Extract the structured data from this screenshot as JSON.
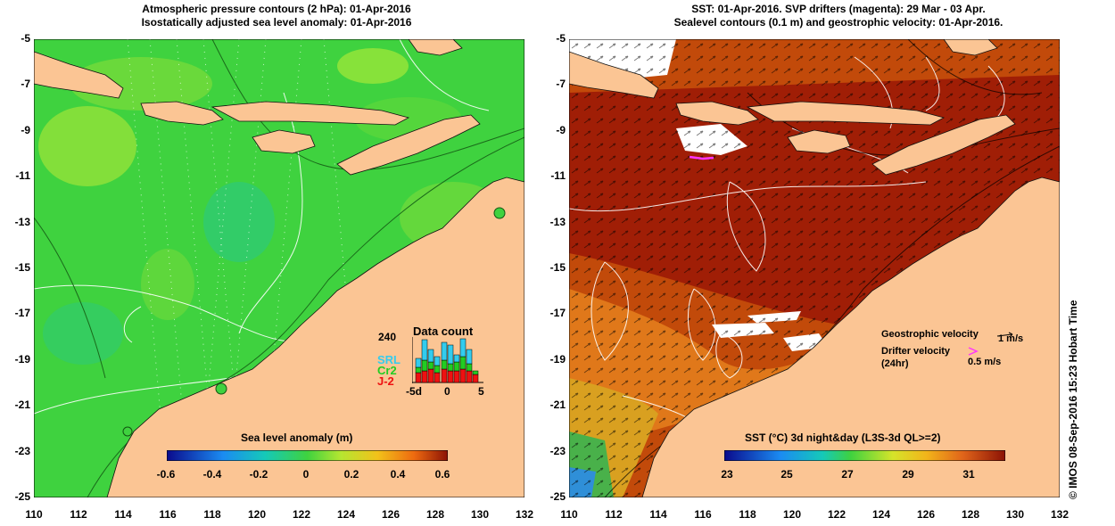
{
  "left_panel": {
    "title_line1": "Atmospheric pressure contours (2 hPa): 01-Apr-2016",
    "title_line2": "Isostatically adjusted sea level anomaly: 01-Apr-2016",
    "colorbar": {
      "label": "Sea level anomaly (m)",
      "ticks": [
        "-0.6",
        "-0.4",
        "-0.2",
        "0",
        "0.2",
        "0.4",
        "0.6"
      ]
    },
    "data_count": {
      "title": "Data count",
      "ymax_label": "240",
      "legend": [
        {
          "name": "SRL",
          "color": "#33ccee"
        },
        {
          "name": "Cr2",
          "color": "#22cc22"
        },
        {
          "name": "J-2",
          "color": "#ee1111"
        }
      ],
      "x_labels": [
        "-5d",
        "0",
        "5"
      ]
    }
  },
  "right_panel": {
    "title_line1": "SST: 01-Apr-2016. SVP drifters (magenta): 29 Mar - 03 Apr.",
    "title_line2": "Sealevel contours (0.1 m) and geostrophic velocity: 01-Apr-2016.",
    "colorbar": {
      "label": "SST (°C) 3d night&day (L3S-3d QL>=2)",
      "ticks": [
        "23",
        "25",
        "27",
        "29",
        "31"
      ]
    },
    "geostrophic_label": "Geostrophic velocity",
    "geostrophic_scale": "1 m/s",
    "drifter_label_line1": "Drifter velocity",
    "drifter_label_line2": "(24hr)",
    "drifter_scale": "0.5 m/s"
  },
  "axes": {
    "x_ticks": [
      "110",
      "112",
      "114",
      "116",
      "118",
      "120",
      "122",
      "124",
      "126",
      "128",
      "130",
      "132"
    ],
    "y_ticks": [
      "-5",
      "-7",
      "-9",
      "-11",
      "-13",
      "-15",
      "-17",
      "-19",
      "-21",
      "-23",
      "-25"
    ]
  },
  "credit": "© IMOS 08-Sep-2016 15:23 Hobart Time",
  "colors": {
    "land": "#fbc594",
    "sla_ocean": "#3fd23f",
    "sst_ocean": "#c24a0a"
  }
}
